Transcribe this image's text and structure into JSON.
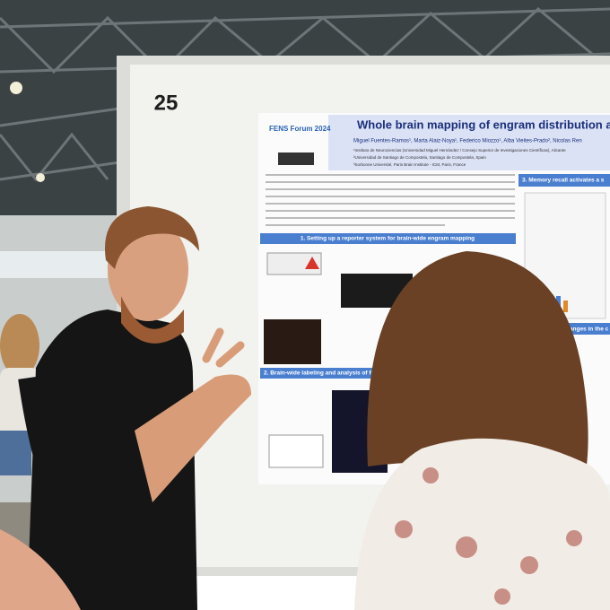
{
  "board": {
    "number": "25"
  },
  "poster": {
    "logo": "FENS Forum 2024",
    "title": "Whole brain mapping of engram distribution and",
    "authors": "Miguel Fuentes-Ramos¹, Marta Alaiz-Noya¹, Federico Miozzo¹, Alba Vieites-Prado², Nicolas Ren",
    "affiliations": [
      "¹Instituto de Neurociencias (Universidad Miguel Hernández / Consejo Superior de Investigaciones Científicas), Alicante",
      "²Universidad de Santiago de Compostela, Santiago de Compostela, Spain",
      "³Sorbonne Université, Paris Brain Institute - ICM, Paris, France"
    ],
    "sections": [
      "1. Setting up a reporter system for brain-wide engram mapping",
      "2. Brain-wide labeling and analysis of fear condi",
      "3. Memory recall activates a s",
      "4. Changes in the c"
    ]
  }
}
